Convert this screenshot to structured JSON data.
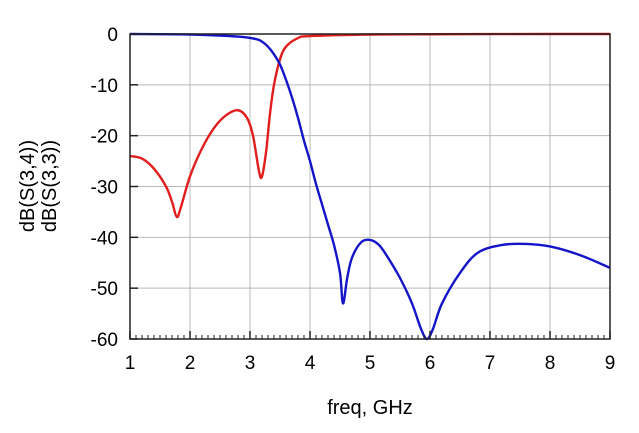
{
  "chart_data": {
    "type": "line",
    "title": "",
    "xlabel": "freq, GHz",
    "xlim": [
      1,
      9
    ],
    "ylim": [
      -60,
      0
    ],
    "x_ticks": [
      "1",
      "2",
      "3",
      "4",
      "5",
      "6",
      "7",
      "8",
      "9"
    ],
    "y_ticks": [
      "0",
      "-10",
      "-20",
      "-30",
      "-40",
      "-50",
      "-60"
    ],
    "grid": true,
    "legend_position": "left vertical axis labels",
    "series": [
      {
        "name": "dB(S(3,3))",
        "color": "#e11d1d",
        "points": [
          [
            1.0,
            -24.0
          ],
          [
            1.2,
            -24.5
          ],
          [
            1.4,
            -26.5
          ],
          [
            1.6,
            -30.0
          ],
          [
            1.7,
            -33.0
          ],
          [
            1.78,
            -36.0
          ],
          [
            1.85,
            -34.0
          ],
          [
            2.0,
            -28.0
          ],
          [
            2.2,
            -22.5
          ],
          [
            2.4,
            -18.5
          ],
          [
            2.6,
            -16.0
          ],
          [
            2.8,
            -15.0
          ],
          [
            2.95,
            -16.5
          ],
          [
            3.05,
            -20.0
          ],
          [
            3.15,
            -27.0
          ],
          [
            3.2,
            -28.0
          ],
          [
            3.27,
            -23.0
          ],
          [
            3.33,
            -16.0
          ],
          [
            3.4,
            -10.0
          ],
          [
            3.5,
            -5.0
          ],
          [
            3.6,
            -2.5
          ],
          [
            3.8,
            -0.8
          ],
          [
            4.0,
            -0.4
          ],
          [
            5.0,
            -0.1
          ],
          [
            6.0,
            -0.05
          ],
          [
            7.0,
            -0.02
          ],
          [
            8.0,
            0.0
          ],
          [
            9.0,
            0.0
          ]
        ]
      },
      {
        "name": "dB(S(3,4))",
        "color": "#1414c8",
        "points": [
          [
            1.0,
            0.0
          ],
          [
            2.0,
            -0.1
          ],
          [
            2.8,
            -0.5
          ],
          [
            3.1,
            -1.0
          ],
          [
            3.2,
            -1.5
          ],
          [
            3.3,
            -2.5
          ],
          [
            3.4,
            -4.0
          ],
          [
            3.5,
            -6.0
          ],
          [
            3.6,
            -9.0
          ],
          [
            3.7,
            -12.5
          ],
          [
            3.8,
            -16.5
          ],
          [
            3.9,
            -21.0
          ],
          [
            4.0,
            -25.0
          ],
          [
            4.1,
            -29.5
          ],
          [
            4.2,
            -33.5
          ],
          [
            4.3,
            -37.5
          ],
          [
            4.4,
            -41.5
          ],
          [
            4.5,
            -47.0
          ],
          [
            4.55,
            -53.0
          ],
          [
            4.62,
            -48.0
          ],
          [
            4.7,
            -44.0
          ],
          [
            4.85,
            -41.0
          ],
          [
            5.0,
            -40.5
          ],
          [
            5.15,
            -41.5
          ],
          [
            5.3,
            -44.0
          ],
          [
            5.5,
            -48.0
          ],
          [
            5.7,
            -53.0
          ],
          [
            5.85,
            -58.0
          ],
          [
            5.95,
            -60.0
          ],
          [
            6.05,
            -58.0
          ],
          [
            6.2,
            -53.0
          ],
          [
            6.5,
            -47.0
          ],
          [
            6.8,
            -43.0
          ],
          [
            7.2,
            -41.5
          ],
          [
            7.6,
            -41.3
          ],
          [
            8.0,
            -41.8
          ],
          [
            8.5,
            -43.5
          ],
          [
            9.0,
            -46.0
          ]
        ]
      }
    ],
    "y_axis_labels": [
      {
        "text": "dB(S(3,4))",
        "color": "#1414c8"
      },
      {
        "text": "dB(S(3,3))",
        "color": "#e11d1d"
      }
    ]
  }
}
